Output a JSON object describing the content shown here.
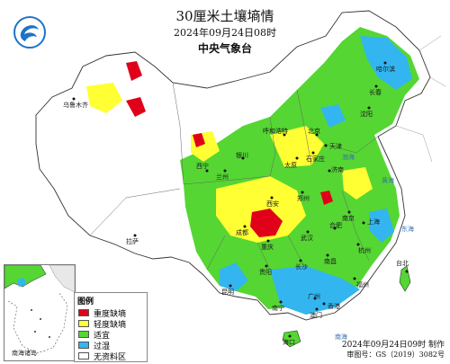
{
  "map": {
    "title": "30厘米土壤墒情",
    "datetime": "2024年09月24日08时",
    "agency": "中央气象台",
    "produced": "2024年09月24日09时 制作",
    "approval": "审图号：GS（2019）3082号"
  },
  "legend": {
    "title": "图例",
    "items": [
      {
        "label": "重度缺墒",
        "color": "#e0001a"
      },
      {
        "label": "轻度缺墒",
        "color": "#ffff33"
      },
      {
        "label": "适宜",
        "color": "#55d633"
      },
      {
        "label": "过湿",
        "color": "#33b5f0"
      },
      {
        "label": "无资料区",
        "color": "#ffffff"
      }
    ]
  },
  "inset": {
    "label": "南海诸岛"
  },
  "places": [
    "乌鲁木齐",
    "哈尔滨",
    "长春",
    "沈阳",
    "北京",
    "天津",
    "呼和浩特",
    "太原",
    "石家庄",
    "济南",
    "银川",
    "兰州",
    "西宁",
    "西安",
    "郑州",
    "南京",
    "上海",
    "武汉",
    "合肥",
    "成都",
    "重庆",
    "拉萨",
    "贵阳",
    "昆明",
    "长沙",
    "南昌",
    "杭州",
    "福州",
    "广州",
    "南宁",
    "海口",
    "台北",
    "香港",
    "澳门"
  ],
  "seas": [
    "渤海",
    "黄海",
    "东海",
    "南海"
  ]
}
